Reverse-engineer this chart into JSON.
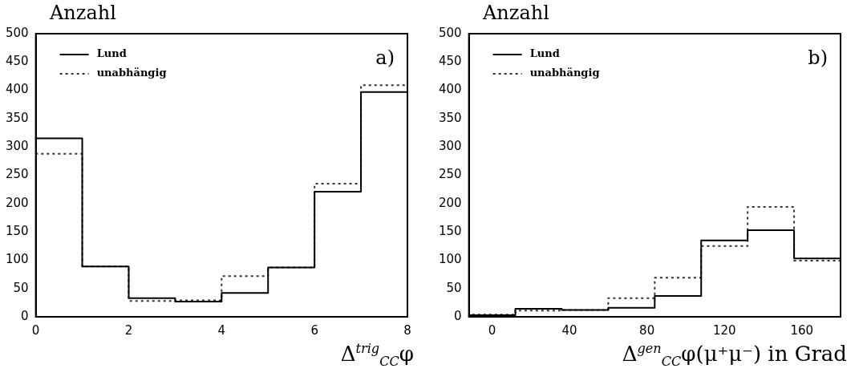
{
  "chart_data": [
    {
      "type": "histogram",
      "ylabel": "Anzahl",
      "xlabel": "Δ$^{trig}$$_{CC}$φ",
      "annotations": [
        "a)"
      ],
      "legend": "top left",
      "bins": [
        0,
        1,
        2,
        3,
        4,
        5,
        6,
        7,
        8
      ],
      "xlim": [
        0,
        8
      ],
      "xticks": [
        0,
        2,
        4,
        6,
        8
      ],
      "ylim": [
        0,
        500
      ],
      "yticks": [
        0,
        50,
        100,
        150,
        200,
        250,
        300,
        350,
        400,
        450,
        500
      ],
      "series": [
        {
          "name": "Lund",
          "color": "#000000",
          "line_style": "solid",
          "values": [
            315,
            89,
            33,
            27,
            42,
            87,
            221,
            397
          ]
        },
        {
          "name": "unabhängig",
          "color": "#333333",
          "line_style": "dotted",
          "values": [
            288,
            89,
            28,
            29,
            72,
            87,
            235,
            409
          ]
        }
      ]
    },
    {
      "type": "histogram",
      "ylabel": "Anzahl",
      "xlabel": "Δ$^{gen}$$_{CC}$φ(μ⁺μ⁻) in Grad",
      "annotations": [
        "b)"
      ],
      "legend": "top left",
      "bins": [
        -12,
        12,
        36,
        60,
        84,
        108,
        132,
        156,
        180
      ],
      "xlim": [
        -12,
        180
      ],
      "xticks": [
        0,
        40,
        80,
        120,
        160
      ],
      "ylim": [
        0,
        500
      ],
      "yticks": [
        0,
        50,
        100,
        150,
        200,
        250,
        300,
        350,
        400,
        450,
        500
      ],
      "series": [
        {
          "name": "Lund",
          "color": "#000000",
          "line_style": "solid",
          "values": [
            3,
            14,
            12,
            16,
            37,
            135,
            153,
            103
          ]
        },
        {
          "name": "unabhängig",
          "color": "#333333",
          "line_style": "dotted",
          "values": [
            4,
            11,
            12,
            33,
            69,
            125,
            194,
            99
          ]
        }
      ]
    }
  ]
}
